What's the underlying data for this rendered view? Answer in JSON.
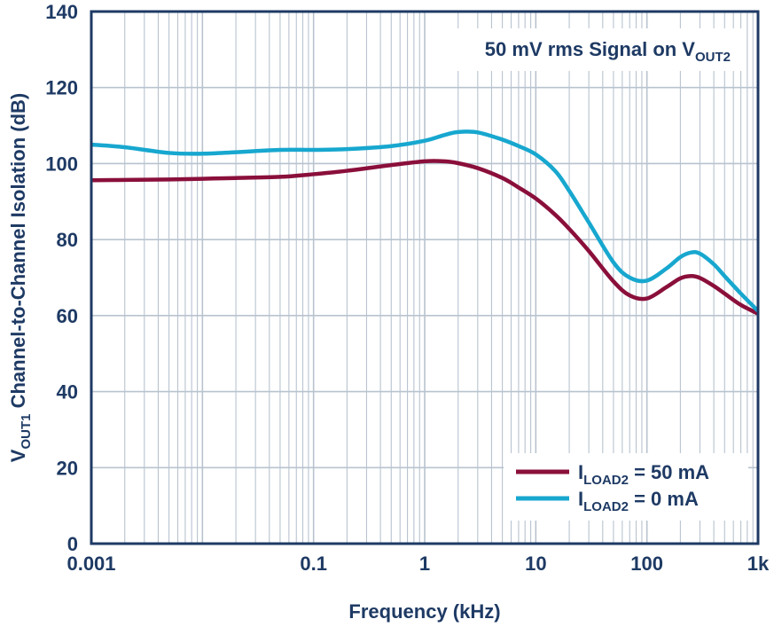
{
  "chart_data": {
    "type": "line",
    "x_scale": "log",
    "xlim": [
      0.001,
      1000
    ],
    "ylim": [
      0,
      140
    ],
    "xlabel": "Frequency (kHz)",
    "ylabel": {
      "prefix": "V",
      "sub": "OUT1",
      "rest": " Channel-to-Channel Isolation (dB)"
    },
    "x_ticks": [
      {
        "value": 0.001,
        "label": "0.001"
      },
      {
        "value": 0.1,
        "label": "0.1"
      },
      {
        "value": 1,
        "label": "1"
      },
      {
        "value": 10,
        "label": "10"
      },
      {
        "value": 100,
        "label": "100"
      },
      {
        "value": 1000,
        "label": "1k"
      }
    ],
    "y_ticks": [
      {
        "value": 0,
        "label": "0"
      },
      {
        "value": 20,
        "label": "20"
      },
      {
        "value": 40,
        "label": "40"
      },
      {
        "value": 60,
        "label": "60"
      },
      {
        "value": 80,
        "label": "80"
      },
      {
        "value": 100,
        "label": "100"
      },
      {
        "value": 120,
        "label": "120"
      },
      {
        "value": 140,
        "label": "140"
      }
    ],
    "grid": true,
    "annotation": {
      "prefix": "50 mV rms Signal on V",
      "sub": "OUT2",
      "position": "top-right"
    },
    "legend_position": "bottom-right",
    "series": [
      {
        "name": {
          "prefix": "I",
          "sub": "LOAD2",
          "rest": " = 50 mA"
        },
        "color": "#8a0f3a",
        "x": [
          0.001,
          0.002,
          0.005,
          0.01,
          0.02,
          0.05,
          0.1,
          0.2,
          0.5,
          1,
          1.5,
          2,
          3,
          5,
          7,
          10,
          15,
          20,
          30,
          50,
          70,
          100,
          150,
          200,
          250,
          300,
          400,
          500,
          700,
          1000
        ],
        "y": [
          95.6,
          95.7,
          95.8,
          96.0,
          96.2,
          96.5,
          97.2,
          98.1,
          99.6,
          100.6,
          100.6,
          100.1,
          98.8,
          96.2,
          93.7,
          90.8,
          86.5,
          82.8,
          77.0,
          69.0,
          65.3,
          64.5,
          67.5,
          69.8,
          70.4,
          69.9,
          67.8,
          65.8,
          62.8,
          60.5
        ]
      },
      {
        "name": {
          "prefix": "I",
          "sub": "LOAD2",
          "rest": " = 0 mA"
        },
        "color": "#17a7cf",
        "x": [
          0.001,
          0.002,
          0.005,
          0.01,
          0.02,
          0.05,
          0.1,
          0.2,
          0.5,
          1,
          1.5,
          2,
          3,
          5,
          7,
          10,
          15,
          20,
          30,
          50,
          70,
          100,
          150,
          200,
          250,
          300,
          400,
          500,
          700,
          1000
        ],
        "y": [
          105.0,
          104.3,
          102.8,
          102.6,
          103.0,
          103.6,
          103.6,
          103.8,
          104.6,
          106.0,
          107.5,
          108.3,
          108.2,
          106.3,
          104.6,
          102.4,
          98.0,
          92.8,
          84.5,
          74.0,
          70.0,
          69.2,
          72.4,
          75.4,
          76.6,
          76.3,
          73.5,
          70.4,
          65.8,
          61.2
        ]
      }
    ]
  }
}
